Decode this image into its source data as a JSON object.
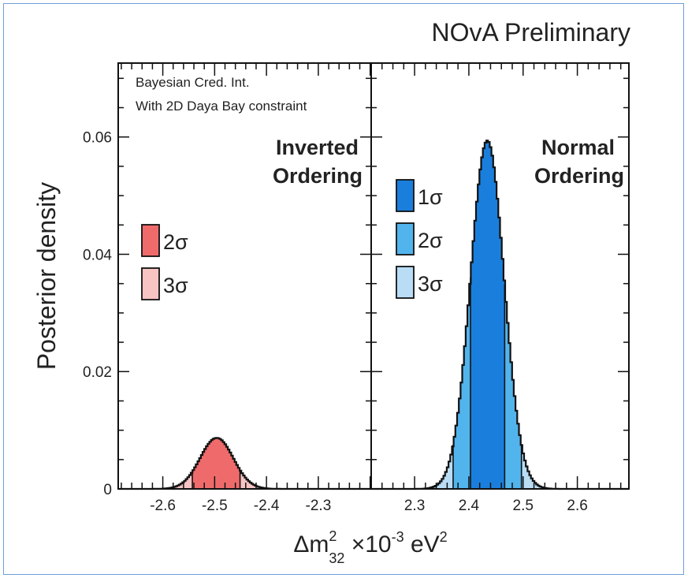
{
  "chart_data": {
    "type": "histogram",
    "title": "NOvA Preliminary",
    "ylabel": "Posterior density",
    "xlabel_parts": {
      "base": "Δm",
      "sup": "2",
      "sub": "32",
      "suffix": " ×10",
      "exp": "-3",
      "unit": " eV",
      "unit_exp": "2"
    },
    "ylim": [
      0,
      0.0726
    ],
    "y_ticks": [
      0,
      0.02,
      0.04,
      0.06
    ],
    "y_tick_labels": [
      "0",
      "0.02",
      "0.04",
      "0.06"
    ],
    "annotation": [
      "Bayesian Cred. Int.",
      "With 2D Daya Bay constraint"
    ],
    "colors": {
      "title": "#2a6cb0",
      "io_label": "#e05a5a",
      "no_label": "#3d9ad6",
      "io_2sigma": "#ef6b6b",
      "io_3sigma": "#f7c3c3",
      "no_1sigma": "#1a7fdc",
      "no_2sigma": "#52b4ec",
      "no_3sigma": "#b9ddf5"
    },
    "panels": [
      {
        "name": "Inverted Ordering",
        "label_lines": [
          "Inverted",
          "Ordering"
        ],
        "xlim": [
          -2.686,
          -2.198
        ],
        "x_ticks": [
          -2.6,
          -2.5,
          -2.4,
          -2.3
        ],
        "x_tick_labels": [
          "-2.6",
          "-2.5",
          "-2.4",
          "-2.3"
        ],
        "dist": {
          "mean": -2.496,
          "sigma": 0.032,
          "peak": 0.0087
        },
        "intervals": [
          {
            "label": "2σ",
            "range": [
              -2.543,
              -2.451
            ],
            "color_key": "io_2sigma"
          },
          {
            "label": "3σ",
            "range": [
              -2.686,
              -2.198
            ],
            "color_key": "io_3sigma"
          }
        ]
      },
      {
        "name": "Normal Ordering",
        "label_lines": [
          "Normal",
          "Ordering"
        ],
        "xlim": [
          2.22,
          2.695
        ],
        "x_ticks": [
          2.3,
          2.4,
          2.5,
          2.6
        ],
        "x_tick_labels": [
          "2.3",
          "2.4",
          "2.5",
          "2.6"
        ],
        "dist": {
          "mean": 2.434,
          "sigma": 0.031,
          "peak": 0.0594
        },
        "intervals": [
          {
            "label": "1σ",
            "range": [
              2.403,
              2.466
            ],
            "color_key": "no_1sigma"
          },
          {
            "label": "2σ",
            "range": [
              2.371,
              2.497
            ],
            "color_key": "no_2sigma"
          },
          {
            "label": "3σ",
            "range": [
              2.22,
              2.695
            ],
            "color_key": "no_3sigma"
          }
        ]
      }
    ],
    "legends": [
      {
        "panel": 0,
        "entries": [
          {
            "label": "2σ",
            "color_key": "io_2sigma"
          },
          {
            "label": "3σ",
            "color_key": "io_3sigma"
          }
        ]
      },
      {
        "panel": 1,
        "entries": [
          {
            "label": "1σ",
            "color_key": "no_1sigma"
          },
          {
            "label": "2σ",
            "color_key": "no_2sigma"
          },
          {
            "label": "3σ",
            "color_key": "no_3sigma"
          }
        ]
      }
    ]
  }
}
